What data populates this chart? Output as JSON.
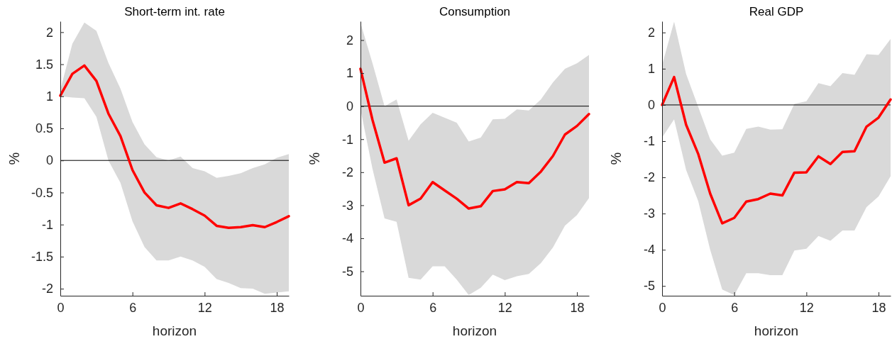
{
  "chart_data": [
    {
      "type": "line",
      "title": "Short-term int. rate",
      "xlabel": "horizon",
      "ylabel": "%",
      "x": [
        0,
        1,
        2,
        3,
        4,
        5,
        6,
        7,
        8,
        9,
        10,
        11,
        12,
        13,
        14,
        15,
        16,
        17,
        18,
        19
      ],
      "xlim": [
        0,
        19
      ],
      "xticks": [
        0,
        6,
        12,
        18
      ],
      "ylim": [
        -2.11,
        2.17
      ],
      "yticks": [
        -2,
        -1.5,
        -1,
        -0.5,
        0,
        0.5,
        1,
        1.5,
        2
      ],
      "series": [
        {
          "color": "#ff0000",
          "values": [
            1.01,
            1.35,
            1.48,
            1.24,
            0.73,
            0.38,
            -0.15,
            -0.5,
            -0.7,
            -0.74,
            -0.67,
            -0.76,
            -0.86,
            -1.02,
            -1.05,
            -1.04,
            -1.01,
            -1.04,
            -0.96,
            -0.87
          ],
          "upper": [
            1.1,
            1.82,
            2.15,
            2.02,
            1.52,
            1.12,
            0.6,
            0.25,
            0.05,
            0.0,
            0.06,
            -0.12,
            -0.17,
            -0.27,
            -0.24,
            -0.2,
            -0.12,
            -0.06,
            0.04,
            0.1
          ],
          "lower": [
            1.0,
            0.98,
            0.97,
            0.68,
            0.0,
            -0.35,
            -0.95,
            -1.35,
            -1.56,
            -1.56,
            -1.5,
            -1.56,
            -1.66,
            -1.85,
            -1.91,
            -1.99,
            -2.0,
            -2.08,
            -2.06,
            -2.04
          ]
        }
      ],
      "ref_lines": [
        {
          "axis": "y",
          "value": 0,
          "color": "#000000"
        }
      ]
    },
    {
      "type": "line",
      "title": "Consumption",
      "xlabel": "horizon",
      "ylabel": "%",
      "x": [
        0,
        1,
        2,
        3,
        4,
        5,
        6,
        7,
        8,
        9,
        10,
        11,
        12,
        13,
        14,
        15,
        16,
        17,
        18,
        19
      ],
      "xlim": [
        0,
        19
      ],
      "xticks": [
        0,
        6,
        12,
        18
      ],
      "ylim": [
        -5.74,
        2.57
      ],
      "yticks": [
        -5,
        -4,
        -3,
        -2,
        -1,
        0,
        1,
        2
      ],
      "series": [
        {
          "color": "#ff0000",
          "values": [
            1.13,
            -0.42,
            -1.71,
            -1.58,
            -3.0,
            -2.8,
            -2.3,
            -2.55,
            -2.8,
            -3.1,
            -3.03,
            -2.57,
            -2.52,
            -2.3,
            -2.33,
            -1.98,
            -1.51,
            -0.86,
            -0.6,
            -0.24
          ],
          "upper": [
            2.52,
            1.3,
            0.0,
            0.2,
            -1.05,
            -0.55,
            -0.2,
            -0.35,
            -0.5,
            -1.07,
            -0.95,
            -0.4,
            -0.38,
            -0.1,
            -0.13,
            0.2,
            0.72,
            1.13,
            1.3,
            1.55
          ],
          "lower": [
            -0.1,
            -1.9,
            -3.4,
            -3.5,
            -5.2,
            -5.25,
            -4.85,
            -4.85,
            -5.25,
            -5.72,
            -5.5,
            -5.1,
            -5.27,
            -5.15,
            -5.08,
            -4.75,
            -4.28,
            -3.62,
            -3.3,
            -2.78
          ]
        }
      ],
      "ref_lines": [
        {
          "axis": "y",
          "value": 0,
          "color": "#000000"
        }
      ]
    },
    {
      "type": "line",
      "title": "Real GDP",
      "xlabel": "horizon",
      "ylabel": "%",
      "x": [
        0,
        1,
        2,
        3,
        4,
        5,
        6,
        7,
        8,
        9,
        10,
        11,
        12,
        13,
        14,
        15,
        16,
        17,
        18,
        19
      ],
      "xlim": [
        0,
        19
      ],
      "xticks": [
        0,
        6,
        12,
        18
      ],
      "ylim": [
        -5.27,
        2.31
      ],
      "yticks": [
        -5,
        -4,
        -3,
        -2,
        -1,
        0,
        1,
        2
      ],
      "series": [
        {
          "color": "#ff0000",
          "values": [
            0,
            0.77,
            -0.55,
            -1.35,
            -2.45,
            -3.27,
            -3.12,
            -2.67,
            -2.6,
            -2.45,
            -2.5,
            -1.87,
            -1.86,
            -1.42,
            -1.63,
            -1.3,
            -1.28,
            -0.6,
            -0.35,
            0.15
          ],
          "upper": [
            1.1,
            2.3,
            0.85,
            -0.05,
            -0.95,
            -1.4,
            -1.32,
            -0.66,
            -0.6,
            -0.68,
            -0.67,
            0.03,
            0.1,
            0.6,
            0.52,
            0.88,
            0.83,
            1.4,
            1.38,
            1.82
          ],
          "lower": [
            -0.9,
            -0.4,
            -1.8,
            -2.65,
            -4.0,
            -5.1,
            -5.25,
            -4.65,
            -4.65,
            -4.7,
            -4.7,
            -4.02,
            -3.97,
            -3.62,
            -3.75,
            -3.47,
            -3.47,
            -2.82,
            -2.53,
            -1.97
          ]
        }
      ],
      "ref_lines": [
        {
          "axis": "y",
          "value": 0,
          "color": "#000000"
        }
      ]
    }
  ]
}
